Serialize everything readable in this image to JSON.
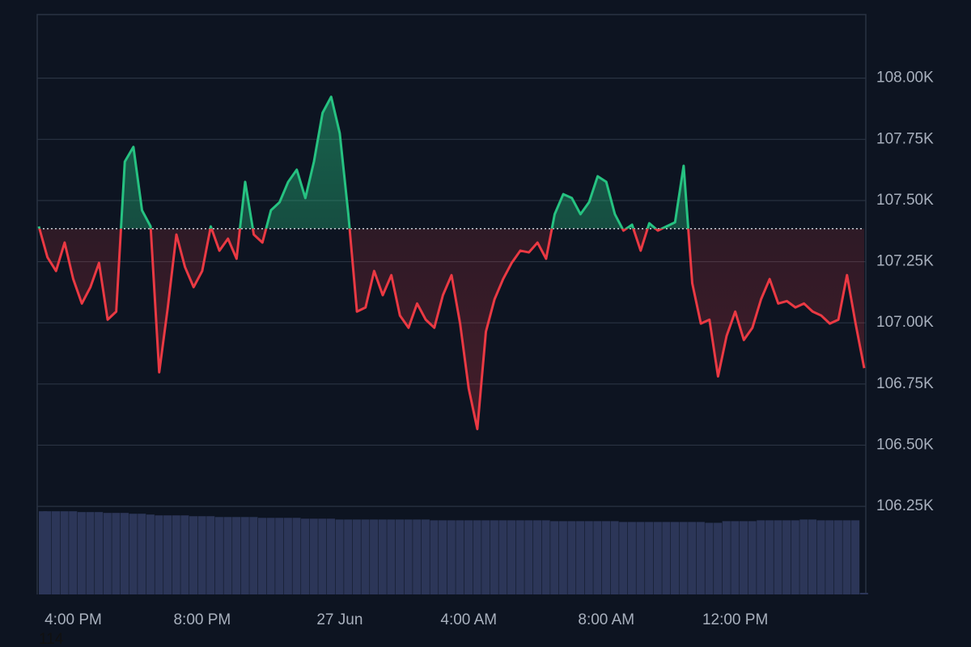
{
  "chart_data": {
    "type": "baseline-line",
    "categories": [
      null,
      null,
      null,
      null,
      "4:00 PM",
      null,
      null,
      null,
      null,
      null,
      null,
      null,
      null,
      null,
      null,
      null,
      null,
      null,
      null,
      "8:00 PM",
      null,
      null,
      null,
      null,
      null,
      null,
      null,
      null,
      null,
      null,
      null,
      null,
      null,
      null,
      null,
      "27 Jun",
      null,
      null,
      null,
      null,
      null,
      null,
      null,
      null,
      null,
      null,
      null,
      null,
      null,
      null,
      "4:00 AM",
      null,
      null,
      null,
      null,
      null,
      null,
      null,
      null,
      null,
      null,
      null,
      null,
      null,
      null,
      null,
      "8:00 AM",
      null,
      null,
      null,
      null,
      null,
      null,
      null,
      null,
      null,
      null,
      null,
      null,
      null,
      null,
      "12:00 PM",
      null,
      null,
      null,
      null,
      null,
      null,
      null,
      null,
      null,
      null,
      null,
      null,
      null,
      null,
      null
    ],
    "series": [
      {
        "values": [
          107394,
          107268,
          107212,
          107328,
          107179,
          107079,
          107146,
          107245,
          107013,
          107046,
          107659,
          107719,
          107460,
          107394,
          106798,
          107063,
          107361,
          107228,
          107146,
          107212,
          107394,
          107295,
          107344,
          107262,
          107576,
          107361,
          107328,
          107460,
          107493,
          107576,
          107626,
          107510,
          107659,
          107858,
          107924,
          107775,
          107444,
          107046,
          107063,
          107212,
          107113,
          107195,
          107030,
          106980,
          107079,
          107013,
          106980,
          107113,
          107195,
          106997,
          106732,
          106566,
          106964,
          107096,
          107179,
          107245,
          107295,
          107288,
          107328,
          107262,
          107444,
          107526,
          107510,
          107444,
          107493,
          107599,
          107576,
          107444,
          107377,
          107401,
          107295,
          107407,
          107377,
          107394,
          107411,
          107642,
          107162,
          106997,
          107013,
          106781,
          106947,
          107046,
          106930,
          106980,
          107096,
          107179,
          107079,
          107089,
          107063,
          107079,
          107046,
          107030,
          106997,
          107013,
          107195,
          106997,
          106815
        ],
        "color_above": "#26c281",
        "color_below": "#ea3943"
      }
    ],
    "baseline": 107385,
    "volume": {
      "values": [
        101,
        101,
        101,
        101,
        101,
        100,
        100,
        100,
        99,
        99,
        99,
        98,
        98,
        97,
        96,
        96,
        96,
        96,
        95,
        95,
        95,
        94,
        94,
        94,
        94,
        94,
        93,
        93,
        93,
        93,
        93,
        92,
        92,
        92,
        92,
        91,
        91,
        91,
        91,
        91,
        91,
        91,
        91,
        91,
        91,
        91,
        90,
        90,
        90,
        90,
        90,
        90,
        90,
        90,
        90,
        90,
        90,
        90,
        90,
        90,
        89,
        89,
        89,
        89,
        89,
        89,
        89,
        89,
        88,
        88,
        88,
        88,
        88,
        88,
        88,
        88,
        88,
        88,
        87,
        87,
        89,
        89,
        89,
        89,
        90,
        90,
        90,
        90,
        90,
        91,
        91,
        90,
        90,
        90,
        90,
        90,
        2
      ],
      "color": "#2c3658",
      "ylim": [
        0,
        110
      ]
    },
    "ylim": [
      105890,
      108260
    ],
    "yticks": [
      {
        "value": 106250,
        "label": "106.25K"
      },
      {
        "value": 106500,
        "label": "106.50K"
      },
      {
        "value": 106750,
        "label": "106.75K"
      },
      {
        "value": 107000,
        "label": "107.00K"
      },
      {
        "value": 107250,
        "label": "107.25K"
      },
      {
        "value": 107500,
        "label": "107.50K"
      },
      {
        "value": 107750,
        "label": "107.75K"
      },
      {
        "value": 108000,
        "label": "108.00K"
      }
    ],
    "grid": true,
    "footer_label": "114"
  }
}
